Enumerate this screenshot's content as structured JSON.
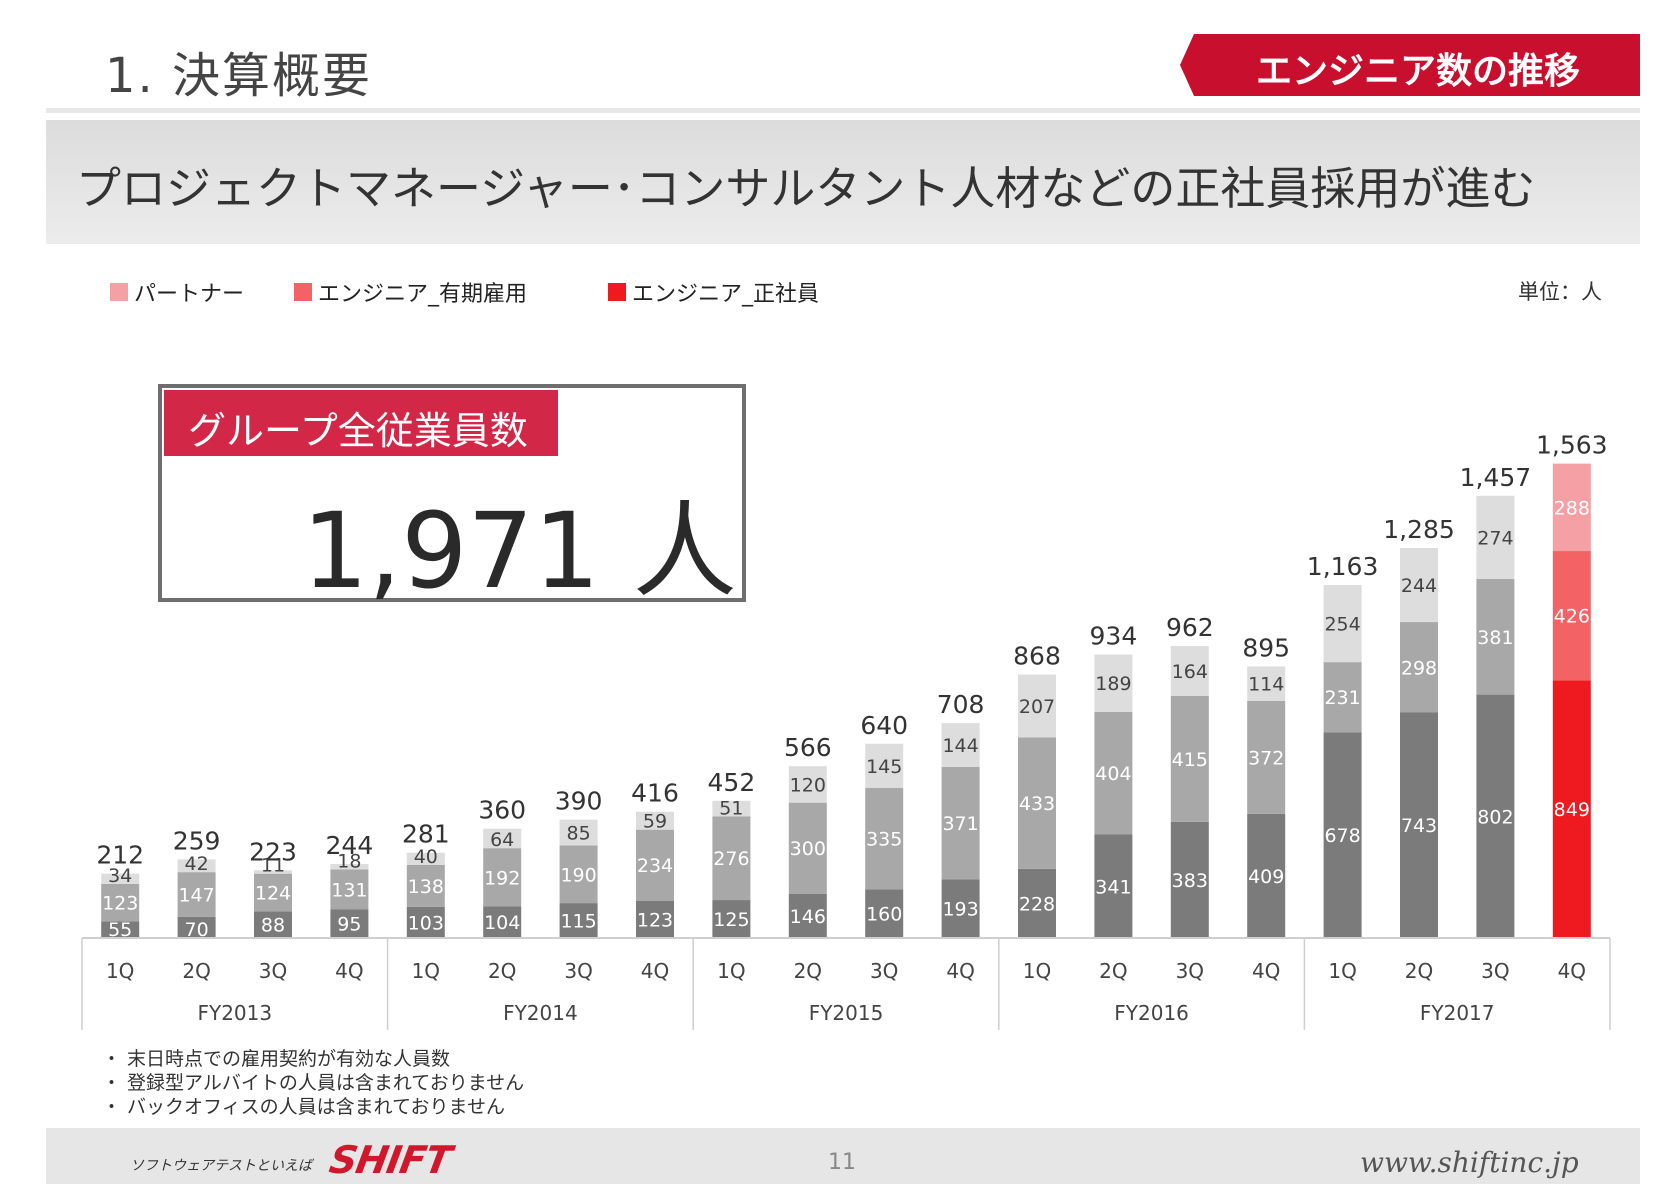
{
  "header": {
    "title": "1.  決算概要",
    "section_tag": "エンジニア数の推移",
    "subtitle": "プロジェクトマネージャー･コンサルタント人材などの正社員採用が進む"
  },
  "legend": {
    "items": [
      {
        "label": "パートナー",
        "color": "#f4a0a4"
      },
      {
        "label": "エンジニア_有期雇用",
        "color": "#f36366"
      },
      {
        "label": "エンジニア_正社員",
        "color": "#ee1a1f"
      }
    ],
    "unit": "単位：人"
  },
  "kpi": {
    "label": "グループ全従業員数",
    "value": "1,971 人"
  },
  "colors": {
    "fulltime_gray": "#7b7b7b",
    "fixedterm_gray": "#a8a8a8",
    "partner_gray": "#dddddd",
    "fulltime_red": "#ee1a1f",
    "fixedterm_red": "#f36366",
    "partner_red": "#f4a0a4"
  },
  "chart_data": {
    "type": "bar",
    "stacked": true,
    "categories": [
      "1Q",
      "2Q",
      "3Q",
      "4Q",
      "1Q",
      "2Q",
      "3Q",
      "4Q",
      "1Q",
      "2Q",
      "3Q",
      "4Q",
      "1Q",
      "2Q",
      "3Q",
      "4Q",
      "1Q",
      "2Q",
      "3Q",
      "4Q"
    ],
    "groups": [
      "FY2013",
      "FY2014",
      "FY2015",
      "FY2016",
      "FY2017"
    ],
    "series": [
      {
        "name": "エンジニア_正社員",
        "values": [
          55,
          70,
          88,
          95,
          103,
          104,
          115,
          123,
          125,
          146,
          160,
          193,
          228,
          341,
          383,
          409,
          678,
          743,
          802,
          849
        ]
      },
      {
        "name": "エンジニア_有期雇用",
        "values": [
          123,
          147,
          124,
          131,
          138,
          192,
          190,
          234,
          276,
          300,
          335,
          371,
          433,
          404,
          415,
          372,
          231,
          298,
          381,
          426
        ]
      },
      {
        "name": "パートナー",
        "values": [
          34,
          42,
          11,
          18,
          40,
          64,
          85,
          59,
          51,
          120,
          145,
          144,
          207,
          189,
          164,
          114,
          254,
          244,
          274,
          288
        ]
      }
    ],
    "totals": [
      "212",
      "259",
      "223",
      "244",
      "281",
      "360",
      "390",
      "416",
      "452",
      "566",
      "640",
      "708",
      "868",
      "934",
      "962",
      "895",
      "1,163",
      "1,285",
      "1,457",
      "1,563"
    ],
    "highlight_index": 19,
    "ylim": [
      0,
      1600
    ],
    "title": "",
    "xlabel": "",
    "ylabel": ""
  },
  "notes": [
    "・ 末日時点での雇用契約が有効な人員数",
    "・ 登録型アルバイトの人員は含まれておりません",
    "・ バックオフィスの人員は含まれておりません"
  ],
  "footer": {
    "tagline": "ソフトウェアテストといえば",
    "logo": "SHIFT",
    "page_number": "11",
    "url": "www.shiftinc.jp"
  }
}
